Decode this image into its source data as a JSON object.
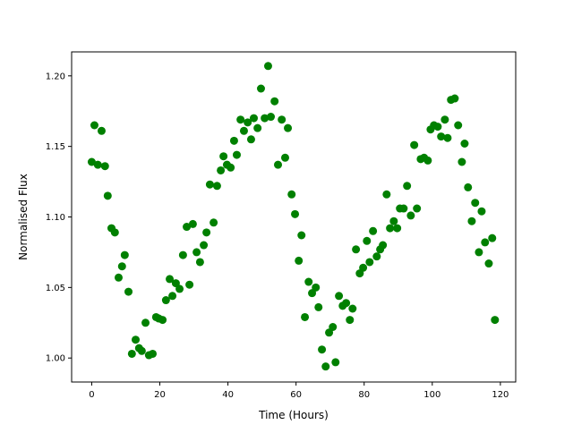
{
  "chart_data": {
    "type": "scatter",
    "title": "",
    "xlabel": "Time (Hours)",
    "ylabel": "Normalised Flux",
    "xlim": [
      -5.9,
      124.5
    ],
    "ylim": [
      0.983,
      1.217
    ],
    "xticks": [
      0,
      20,
      40,
      60,
      80,
      100,
      120
    ],
    "xtick_labels": [
      "0",
      "20",
      "40",
      "60",
      "80",
      "100",
      "120"
    ],
    "yticks": [
      1.0,
      1.05,
      1.1,
      1.15,
      1.2
    ],
    "ytick_labels": [
      "1.00",
      "1.05",
      "1.10",
      "1.15",
      "1.20"
    ],
    "grid": false,
    "marker_color": "#008000",
    "points": [
      [
        0,
        1.139
      ],
      [
        0.8,
        1.165
      ],
      [
        1.8,
        1.137
      ],
      [
        2.9,
        1.161
      ],
      [
        3.9,
        1.136
      ],
      [
        4.7,
        1.115
      ],
      [
        5.8,
        1.092
      ],
      [
        6.8,
        1.089
      ],
      [
        7.9,
        1.057
      ],
      [
        8.9,
        1.065
      ],
      [
        9.7,
        1.073
      ],
      [
        10.8,
        1.047
      ],
      [
        11.8,
        1.003
      ],
      [
        12.9,
        1.013
      ],
      [
        13.9,
        1.007
      ],
      [
        14.7,
        1.005
      ],
      [
        15.8,
        1.025
      ],
      [
        16.8,
        1.002
      ],
      [
        17.9,
        1.003
      ],
      [
        18.9,
        1.029
      ],
      [
        19.7,
        1.028
      ],
      [
        20.8,
        1.027
      ],
      [
        21.8,
        1.041
      ],
      [
        22.9,
        1.056
      ],
      [
        23.7,
        1.044
      ],
      [
        24.7,
        1.053
      ],
      [
        25.8,
        1.049
      ],
      [
        26.8,
        1.073
      ],
      [
        27.9,
        1.093
      ],
      [
        28.7,
        1.052
      ],
      [
        29.7,
        1.095
      ],
      [
        30.8,
        1.075
      ],
      [
        31.8,
        1.068
      ],
      [
        32.9,
        1.08
      ],
      [
        33.7,
        1.089
      ],
      [
        34.7,
        1.123
      ],
      [
        35.8,
        1.096
      ],
      [
        36.8,
        1.122
      ],
      [
        37.9,
        1.133
      ],
      [
        38.7,
        1.143
      ],
      [
        39.7,
        1.137
      ],
      [
        40.8,
        1.135
      ],
      [
        41.8,
        1.154
      ],
      [
        42.6,
        1.144
      ],
      [
        43.7,
        1.169
      ],
      [
        44.7,
        1.161
      ],
      [
        45.8,
        1.167
      ],
      [
        46.8,
        1.155
      ],
      [
        47.6,
        1.17
      ],
      [
        48.7,
        1.163
      ],
      [
        49.7,
        1.191
      ],
      [
        50.8,
        1.17
      ],
      [
        51.8,
        1.207
      ],
      [
        52.6,
        1.171
      ],
      [
        53.7,
        1.182
      ],
      [
        54.7,
        1.137
      ],
      [
        55.8,
        1.169
      ],
      [
        56.8,
        1.142
      ],
      [
        57.6,
        1.163
      ],
      [
        58.7,
        1.116
      ],
      [
        59.7,
        1.102
      ],
      [
        60.8,
        1.069
      ],
      [
        61.6,
        1.087
      ],
      [
        62.6,
        1.029
      ],
      [
        63.7,
        1.054
      ],
      [
        64.7,
        1.046
      ],
      [
        65.8,
        1.05
      ],
      [
        66.6,
        1.036
      ],
      [
        67.6,
        1.006
      ],
      [
        68.7,
        0.994
      ],
      [
        69.7,
        1.018
      ],
      [
        70.8,
        1.022
      ],
      [
        71.6,
        0.997
      ],
      [
        72.6,
        1.044
      ],
      [
        73.7,
        1.037
      ],
      [
        74.7,
        1.039
      ],
      [
        75.8,
        1.027
      ],
      [
        76.6,
        1.035
      ],
      [
        77.6,
        1.077
      ],
      [
        78.7,
        1.06
      ],
      [
        79.7,
        1.064
      ],
      [
        80.8,
        1.083
      ],
      [
        81.6,
        1.068
      ],
      [
        82.6,
        1.09
      ],
      [
        83.7,
        1.072
      ],
      [
        84.7,
        1.077
      ],
      [
        85.5,
        1.08
      ],
      [
        86.6,
        1.116
      ],
      [
        87.6,
        1.092
      ],
      [
        88.7,
        1.097
      ],
      [
        89.7,
        1.092
      ],
      [
        90.5,
        1.106
      ],
      [
        91.6,
        1.106
      ],
      [
        92.6,
        1.122
      ],
      [
        93.7,
        1.101
      ],
      [
        94.7,
        1.151
      ],
      [
        95.5,
        1.106
      ],
      [
        96.6,
        1.141
      ],
      [
        97.6,
        1.142
      ],
      [
        98.7,
        1.14
      ],
      [
        99.5,
        1.162
      ],
      [
        100.5,
        1.165
      ],
      [
        101.6,
        1.164
      ],
      [
        102.6,
        1.157
      ],
      [
        103.7,
        1.169
      ],
      [
        104.5,
        1.156
      ],
      [
        105.5,
        1.183
      ],
      [
        106.6,
        1.184
      ],
      [
        107.6,
        1.165
      ],
      [
        108.7,
        1.139
      ],
      [
        109.5,
        1.152
      ],
      [
        110.5,
        1.121
      ],
      [
        111.6,
        1.097
      ],
      [
        112.6,
        1.11
      ],
      [
        113.7,
        1.075
      ],
      [
        114.5,
        1.104
      ],
      [
        115.5,
        1.082
      ],
      [
        116.6,
        1.067
      ],
      [
        117.6,
        1.085
      ],
      [
        118.4,
        1.027
      ]
    ]
  }
}
